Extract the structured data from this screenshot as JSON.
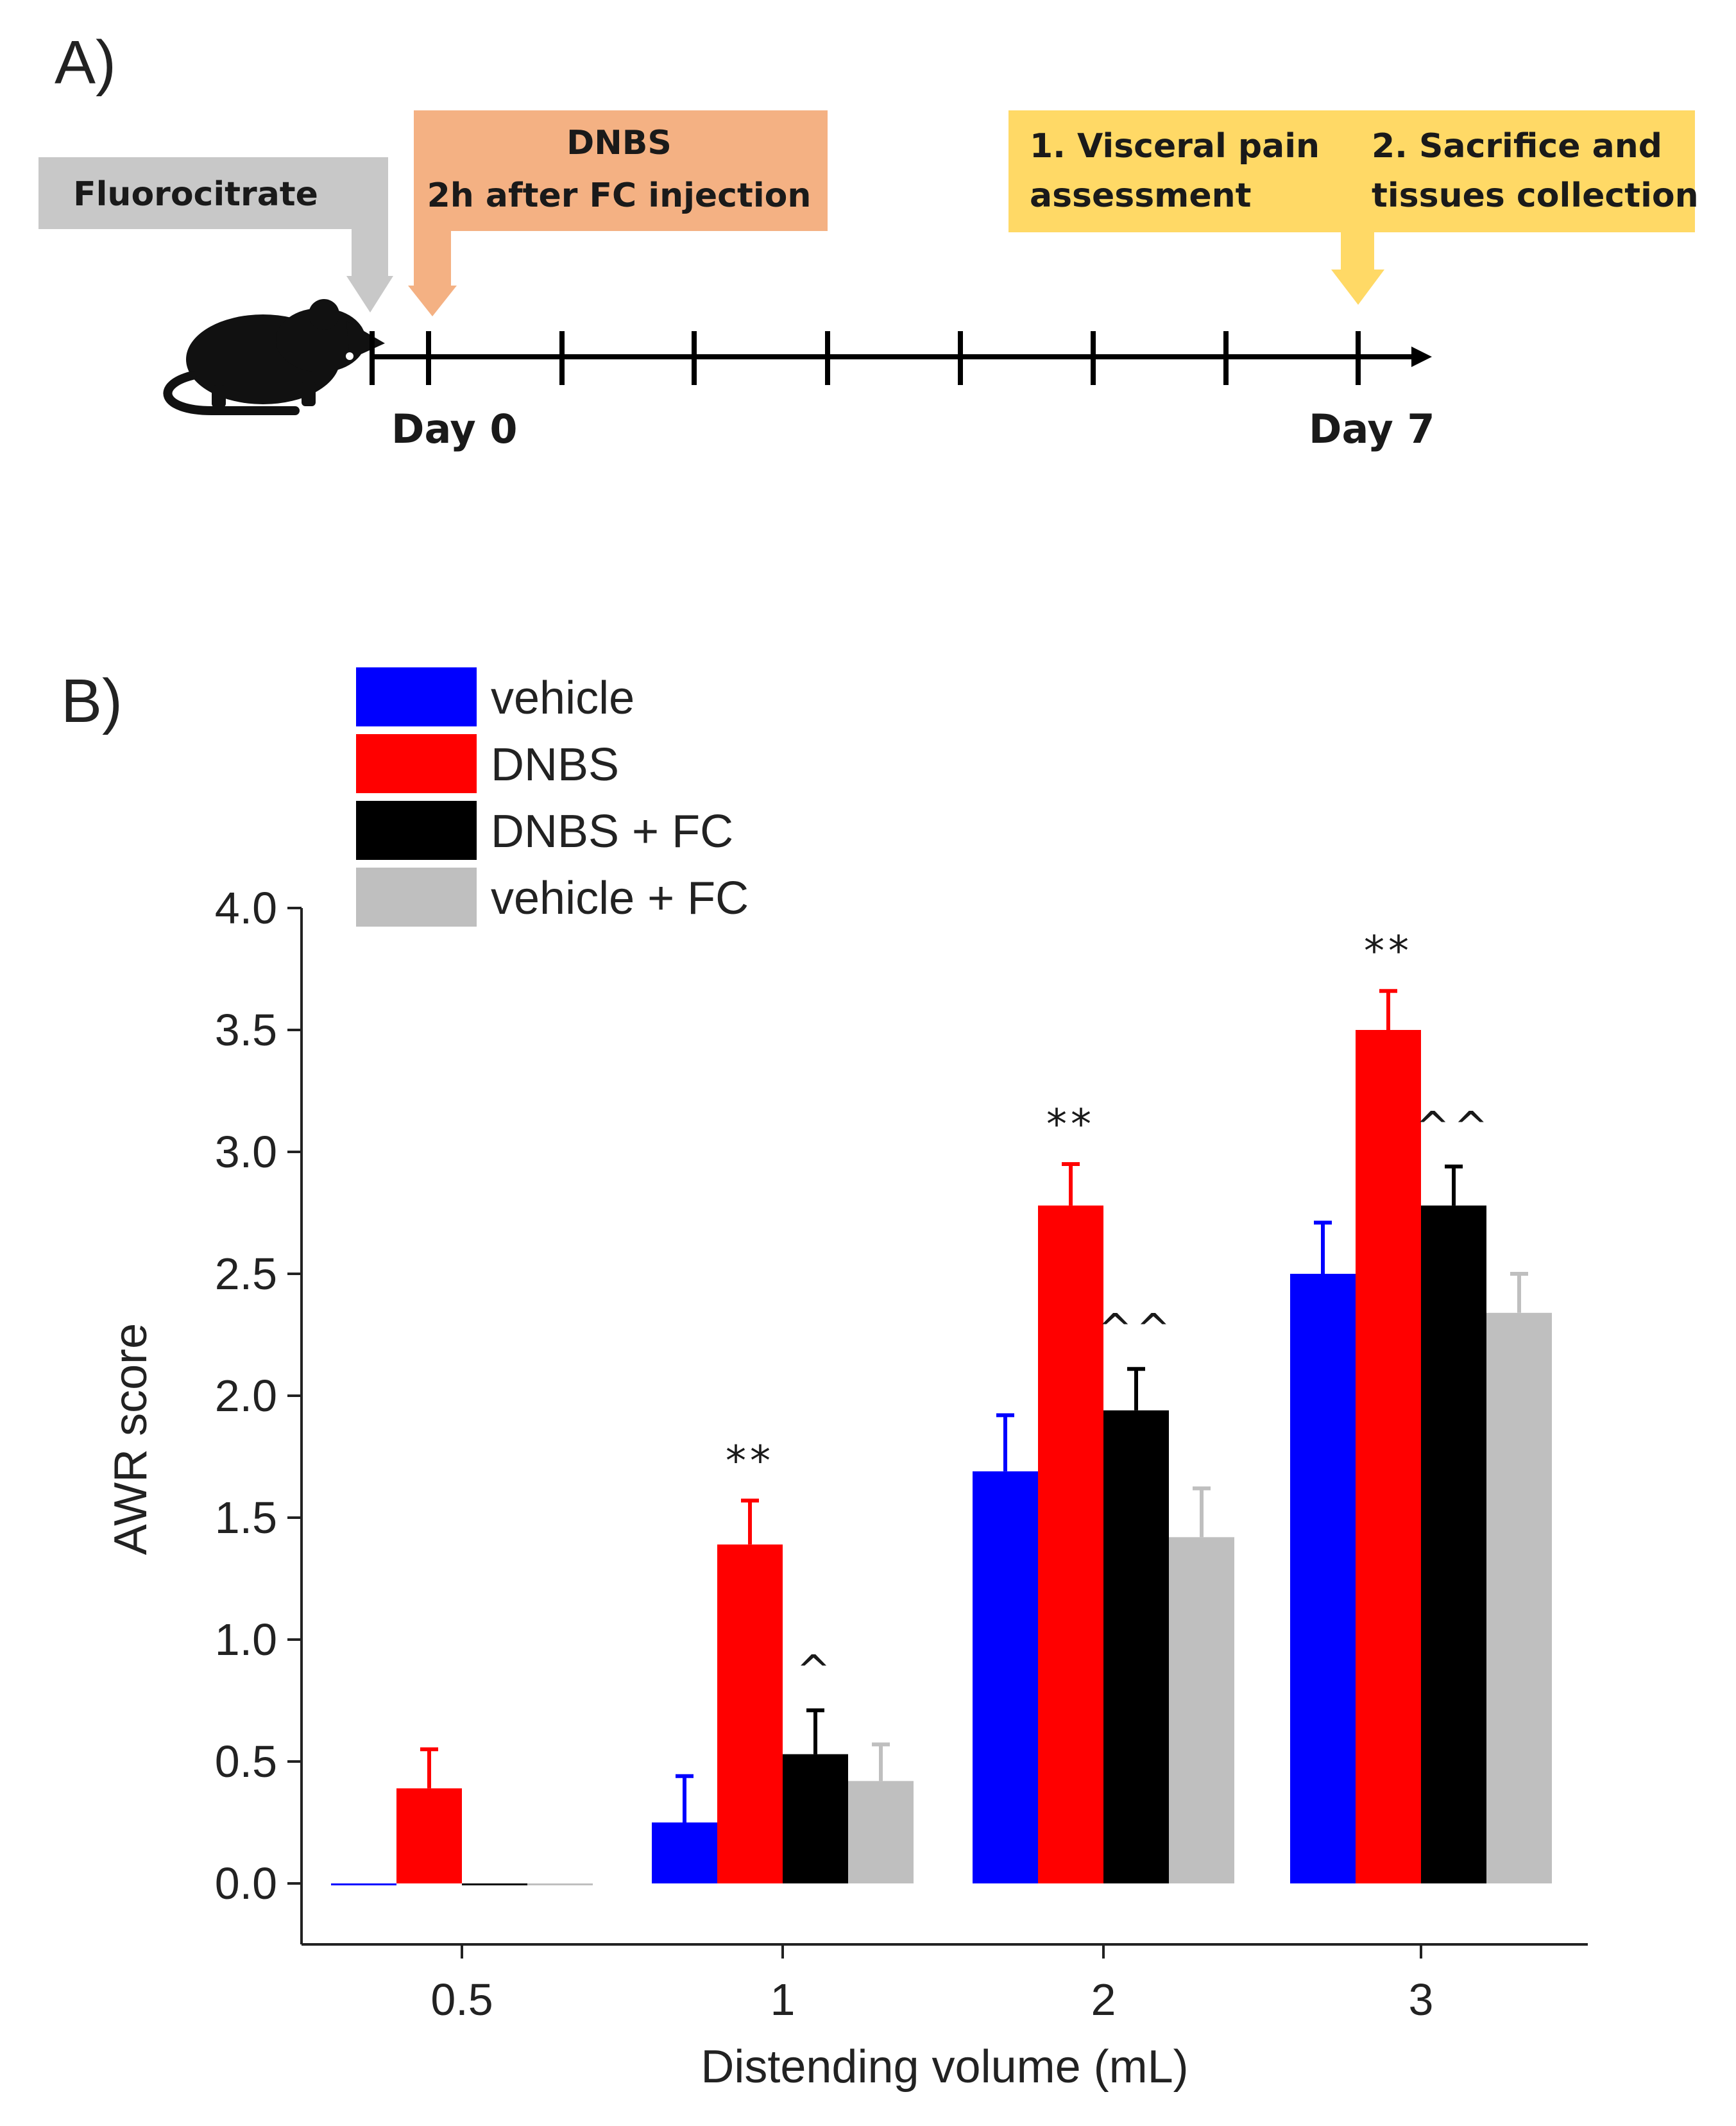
{
  "panel_a": {
    "label": "A)",
    "boxes": {
      "fluorocitrate": "Fluorocitrate",
      "dnbs_line1": "DNBS",
      "dnbs_line2": "2h after FC injection",
      "step1_line1": "1. Visceral pain",
      "step1_line2": "assessment",
      "step2_line1": "2. Sacrifice and",
      "step2_line2": "tissues collection"
    },
    "days": {
      "start": "Day 0",
      "end": "Day 7"
    },
    "colors": {
      "gray_box": "#c8c8c8",
      "orange_box": "#f4b183",
      "yellow_box": "#ffd966",
      "mouse": "#111111"
    },
    "icon": "mouse-icon"
  },
  "panel_b": {
    "label": "B)"
  },
  "chart_data": {
    "type": "bar",
    "xlabel": "Distending volume (mL)",
    "ylabel": "AWR score",
    "ylim": [
      -0.25,
      4.0
    ],
    "yticks": [
      "0.0",
      "0.5",
      "1.0",
      "1.5",
      "2.0",
      "2.5",
      "3.0",
      "3.5",
      "4.0"
    ],
    "categories": [
      "0.5",
      "1",
      "2",
      "3"
    ],
    "legend_placement": "top-left",
    "grid": false,
    "series": [
      {
        "name": "vehicle",
        "color": "#0000ff",
        "values": [
          0,
          0.25,
          1.69,
          2.5
        ],
        "errors": [
          0,
          0.19,
          0.23,
          0.21
        ],
        "annotations": [
          "",
          "",
          "",
          ""
        ]
      },
      {
        "name": "DNBS",
        "color": "#ff0000",
        "values": [
          0.39,
          1.39,
          2.78,
          3.5
        ],
        "errors": [
          0.16,
          0.18,
          0.17,
          0.16
        ],
        "annotations": [
          "",
          "**",
          "**",
          "**"
        ]
      },
      {
        "name": "DNBS + FC",
        "color": "#000000",
        "values": [
          0,
          0.53,
          1.94,
          2.78
        ],
        "errors": [
          0,
          0.18,
          0.17,
          0.16
        ],
        "annotations": [
          "",
          "^",
          "^^",
          "^^"
        ]
      },
      {
        "name": "vehicle + FC",
        "color": "#bfbfbf",
        "values": [
          0,
          0.42,
          1.42,
          2.34
        ],
        "errors": [
          0,
          0.15,
          0.2,
          0.16
        ],
        "annotations": [
          "",
          "",
          "",
          ""
        ]
      }
    ]
  }
}
